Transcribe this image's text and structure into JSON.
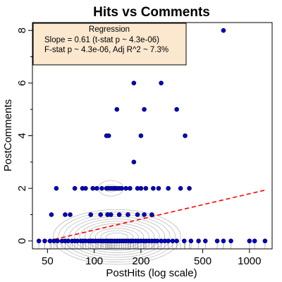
{
  "chart_data": {
    "type": "scatter",
    "title": "Hits vs Comments",
    "xlabel": "PostHits (log scale)",
    "ylabel": "PostComments",
    "x_scale": "log",
    "xlim": [
      40,
      1400
    ],
    "ylim": [
      -0.3,
      8.3
    ],
    "x_ticks": [
      50,
      100,
      200,
      500,
      1000
    ],
    "y_ticks": [
      0,
      2,
      4,
      6,
      8
    ],
    "legend": {
      "title": "Regression",
      "lines": [
        "Slope = 0.61 (t-stat p ~ 4.3e-06)",
        "F-stat p ~ 4.3e-06, Adj R^2 ~ 7.3%"
      ],
      "placement": "top-left"
    },
    "regression_line": {
      "start": [
        50,
        0.0
      ],
      "end": [
        1300,
        1.95
      ],
      "color": "#ff0000",
      "style": "dashed"
    },
    "point_color": "#0000cc",
    "density_contour_color": "#bbbbbb",
    "series": [
      {
        "points": [
          [
            680,
            8
          ],
          [
            180,
            6
          ],
          [
            270,
            6
          ],
          [
            140,
            5
          ],
          [
            210,
            5
          ],
          [
            340,
            5
          ],
          [
            120,
            4
          ],
          [
            124,
            4
          ],
          [
            200,
            4
          ],
          [
            385,
            4
          ],
          [
            180,
            3
          ],
          [
            57,
            2
          ],
          [
            75,
            2
          ],
          [
            84,
            2
          ],
          [
            88,
            2
          ],
          [
            98,
            2
          ],
          [
            104,
            2
          ],
          [
            112,
            2
          ],
          [
            120,
            2
          ],
          [
            124,
            2
          ],
          [
            128,
            2
          ],
          [
            132,
            2
          ],
          [
            136,
            2
          ],
          [
            140,
            2
          ],
          [
            145,
            2
          ],
          [
            150,
            2
          ],
          [
            160,
            2
          ],
          [
            170,
            2
          ],
          [
            190,
            2
          ],
          [
            200,
            2
          ],
          [
            215,
            2
          ],
          [
            240,
            2
          ],
          [
            260,
            2
          ],
          [
            300,
            2
          ],
          [
            360,
            2
          ],
          [
            410,
            2
          ],
          [
            53,
            1
          ],
          [
            65,
            1
          ],
          [
            70,
            1
          ],
          [
            95,
            1
          ],
          [
            110,
            1
          ],
          [
            122,
            1
          ],
          [
            128,
            1
          ],
          [
            145,
            1
          ],
          [
            165,
            1
          ],
          [
            190,
            1
          ],
          [
            210,
            1
          ],
          [
            235,
            1
          ],
          [
            44,
            0
          ],
          [
            48,
            0
          ],
          [
            52,
            0
          ],
          [
            55,
            0
          ],
          [
            58,
            0
          ],
          [
            62,
            0
          ],
          [
            65,
            0
          ],
          [
            68,
            0
          ],
          [
            72,
            0
          ],
          [
            75,
            0
          ],
          [
            78,
            0
          ],
          [
            82,
            0
          ],
          [
            85,
            0
          ],
          [
            88,
            0
          ],
          [
            92,
            0
          ],
          [
            95,
            0
          ],
          [
            98,
            0
          ],
          [
            102,
            0
          ],
          [
            106,
            0
          ],
          [
            110,
            0
          ],
          [
            114,
            0
          ],
          [
            118,
            0
          ],
          [
            122,
            0
          ],
          [
            126,
            0
          ],
          [
            130,
            0
          ],
          [
            135,
            0
          ],
          [
            140,
            0
          ],
          [
            145,
            0
          ],
          [
            150,
            0
          ],
          [
            155,
            0
          ],
          [
            160,
            0
          ],
          [
            166,
            0
          ],
          [
            172,
            0
          ],
          [
            178,
            0
          ],
          [
            185,
            0
          ],
          [
            192,
            0
          ],
          [
            200,
            0
          ],
          [
            208,
            0
          ],
          [
            216,
            0
          ],
          [
            225,
            0
          ],
          [
            235,
            0
          ],
          [
            245,
            0
          ],
          [
            255,
            0
          ],
          [
            270,
            0
          ],
          [
            285,
            0
          ],
          [
            300,
            0
          ],
          [
            320,
            0
          ],
          [
            340,
            0
          ],
          [
            380,
            0
          ],
          [
            420,
            0
          ],
          [
            470,
            0
          ],
          [
            520,
            0
          ],
          [
            620,
            0
          ],
          [
            680,
            0
          ],
          [
            760,
            0
          ],
          [
            1000,
            0
          ],
          [
            1080,
            0
          ],
          [
            1260,
            0
          ]
        ]
      }
    ]
  }
}
